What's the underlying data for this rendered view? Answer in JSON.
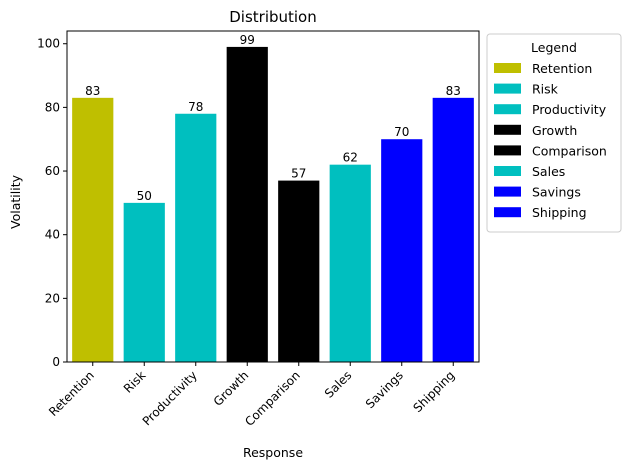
{
  "chart_data": {
    "type": "bar",
    "title": "Distribution",
    "xlabel": "Response",
    "ylabel": "Volatility",
    "categories": [
      "Retention",
      "Risk",
      "Productivity",
      "Growth",
      "Comparison",
      "Sales",
      "Savings",
      "Shipping"
    ],
    "values": [
      83,
      50,
      78,
      99,
      57,
      62,
      70,
      83
    ],
    "colors": [
      "#bfbf00",
      "#00bfbf",
      "#00bfbf",
      "#000000",
      "#000000",
      "#00bfbf",
      "#0000ff",
      "#0000ff"
    ],
    "ylim": [
      0,
      104
    ],
    "yticks": [
      0,
      20,
      40,
      60,
      80,
      100
    ],
    "grid": false,
    "legend": {
      "title": "Legend",
      "placement": "outside-right-top",
      "entries": [
        "Retention",
        "Risk",
        "Productivity",
        "Growth",
        "Comparison",
        "Sales",
        "Savings",
        "Shipping"
      ]
    }
  }
}
